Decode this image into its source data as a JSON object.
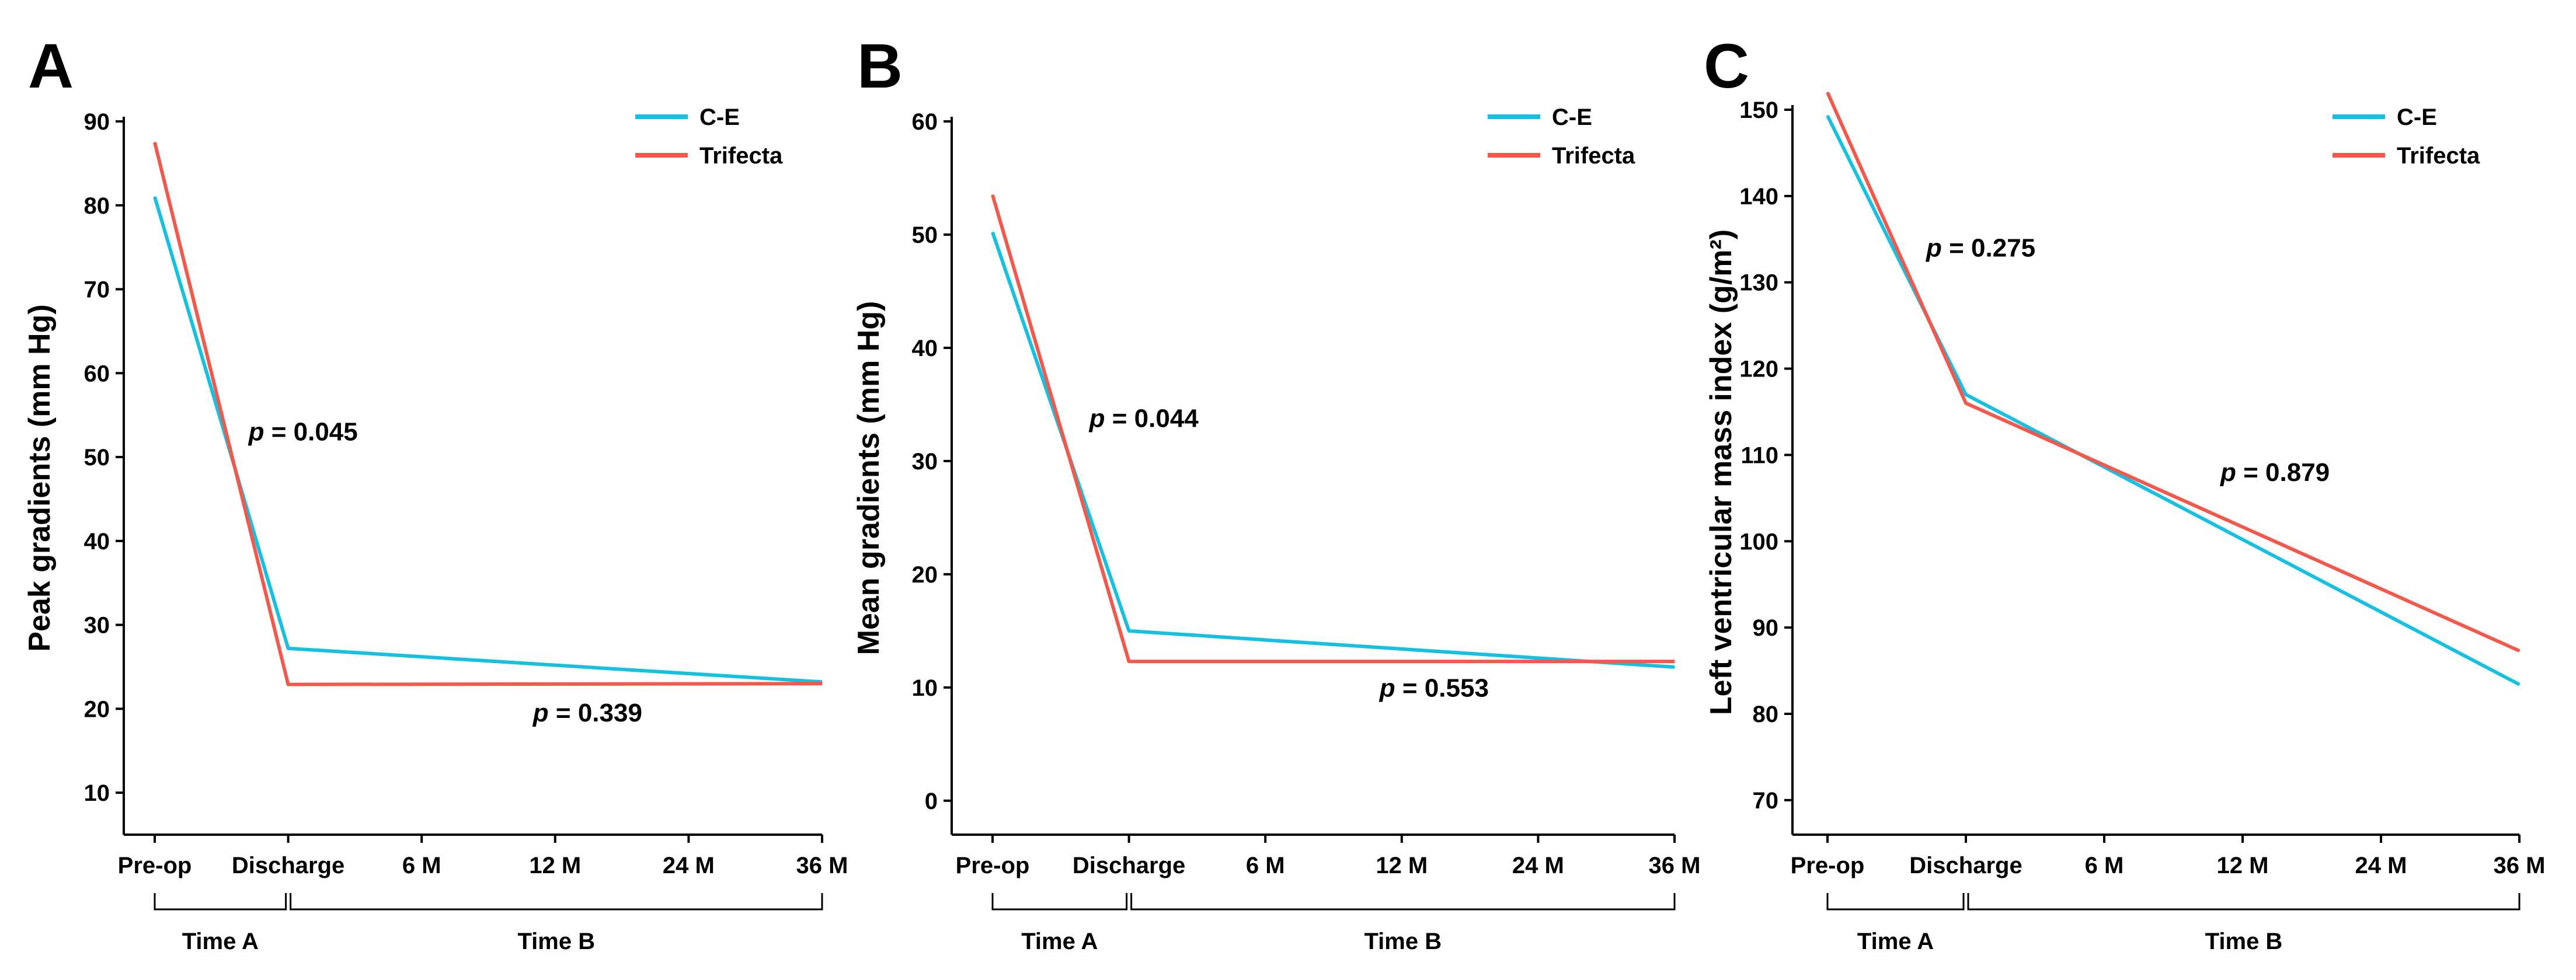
{
  "colors": {
    "ce": "#16c0e0",
    "trifecta": "#f2584b"
  },
  "chart_data": [
    {
      "panel": "A",
      "type": "line",
      "ylabel": "Peak gradients (mm Hg)",
      "ylim": [
        5,
        90
      ],
      "yticks": [
        10,
        20,
        30,
        40,
        50,
        60,
        70,
        80,
        90
      ],
      "categories": [
        "Pre-op",
        "Discharge",
        "6 M",
        "12 M",
        "24 M",
        "36 M"
      ],
      "series": [
        {
          "name": "C-E",
          "points": [
            {
              "x": "Pre-op",
              "y": 81
            },
            {
              "x": "Discharge",
              "y": 27.2
            },
            {
              "x": "36 M",
              "y": 23.2
            }
          ]
        },
        {
          "name": "Trifecta",
          "points": [
            {
              "x": "Pre-op",
              "y": 87.5
            },
            {
              "x": "Discharge",
              "y": 22.9
            },
            {
              "x": "36 M",
              "y": 23
            }
          ]
        }
      ],
      "annotations": [
        {
          "prefix": "p",
          "text": " = 0.045",
          "x": "Discharge",
          "y": 52
        },
        {
          "prefix": "p",
          "text": " = 0.339",
          "x": "12 M",
          "y": 18.5
        }
      ],
      "groups": [
        {
          "label": "Time A",
          "from": "Pre-op",
          "to": "Discharge"
        },
        {
          "label": "Time B",
          "from": "Discharge",
          "to": "36 M"
        }
      ],
      "legend": "top-right"
    },
    {
      "panel": "B",
      "type": "line",
      "ylabel": "Mean gradients (mm Hg)",
      "ylim": [
        -3,
        60
      ],
      "yticks": [
        0,
        10,
        20,
        30,
        40,
        50,
        60
      ],
      "categories": [
        "Pre-op",
        "Discharge",
        "6 M",
        "12 M",
        "24 M",
        "36 M"
      ],
      "series": [
        {
          "name": "C-E",
          "points": [
            {
              "x": "Pre-op",
              "y": 50.2
            },
            {
              "x": "Discharge",
              "y": 15
            },
            {
              "x": "36 M",
              "y": 11.8
            }
          ]
        },
        {
          "name": "Trifecta",
          "points": [
            {
              "x": "Pre-op",
              "y": 53.5
            },
            {
              "x": "Discharge",
              "y": 12.3
            },
            {
              "x": "36 M",
              "y": 12.3
            }
          ]
        }
      ],
      "annotations": [
        {
          "prefix": "p",
          "text": " = 0.044",
          "x": "Discharge",
          "y": 33
        },
        {
          "prefix": "p",
          "text": " = 0.553",
          "x": "12 M",
          "y": 9.2
        }
      ],
      "groups": [
        {
          "label": "Time A",
          "from": "Pre-op",
          "to": "Discharge"
        },
        {
          "label": "Time B",
          "from": "Discharge",
          "to": "36 M"
        }
      ],
      "legend": "top-right"
    },
    {
      "panel": "C",
      "type": "line",
      "ylabel": "Left ventricular mass index (g/m²)",
      "ylim": [
        66,
        150
      ],
      "yticks": [
        70,
        80,
        90,
        100,
        110,
        120,
        130,
        140,
        150
      ],
      "categories": [
        "Pre-op",
        "Discharge",
        "6 M",
        "12 M",
        "24 M",
        "36 M"
      ],
      "series": [
        {
          "name": "C-E",
          "points": [
            {
              "x": "Pre-op",
              "y": 149.3
            },
            {
              "x": "Discharge",
              "y": 117
            },
            {
              "x": "36 M",
              "y": 83.4
            }
          ]
        },
        {
          "name": "Trifecta",
          "points": [
            {
              "x": "Pre-op",
              "y": 152
            },
            {
              "x": "Discharge",
              "y": 116
            },
            {
              "x": "36 M",
              "y": 87.3
            }
          ]
        }
      ],
      "annotations": [
        {
          "prefix": "p",
          "text": " = 0.275",
          "x": "Discharge",
          "y": 133
        },
        {
          "prefix": "p",
          "text": " = 0.879",
          "x": "12 M",
          "y": 107
        }
      ],
      "groups": [
        {
          "label": "Time A",
          "from": "Pre-op",
          "to": "Discharge"
        },
        {
          "label": "Time B",
          "from": "Discharge",
          "to": "36 M"
        }
      ],
      "legend": "top-right"
    }
  ]
}
